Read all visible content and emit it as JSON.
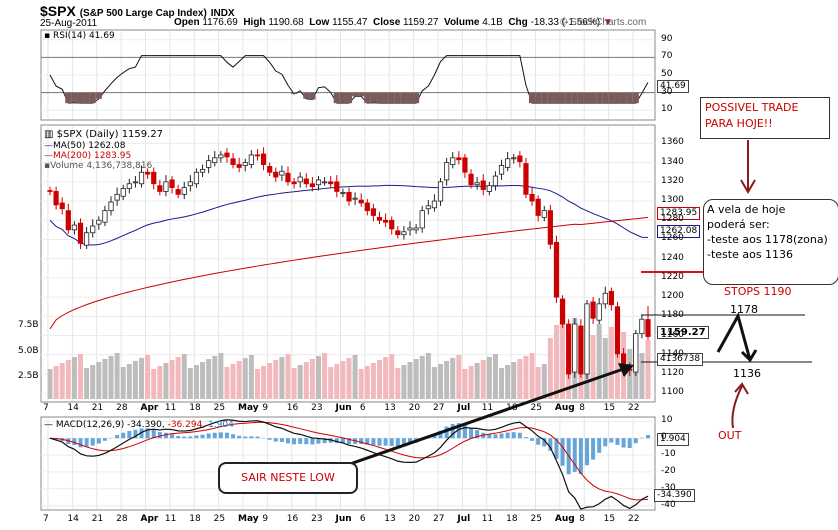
{
  "header": {
    "symbol": "$SPX",
    "name": "(S&P 500 Large Cap Index)",
    "exchange": "INDX",
    "date": "25-Aug-2011",
    "open_label": "Open",
    "open": "1176.69",
    "high_label": "High",
    "high": "1190.68",
    "low_label": "Low",
    "low": "1155.47",
    "close_label": "Close",
    "close": "1159.27",
    "volume_label": "Volume",
    "volume": "4.1B",
    "chg_label": "Chg",
    "chg": "-18.33 (-1.56%)",
    "watermark": "© StockCharts.com"
  },
  "rsi": {
    "label": "RSI(14) 41.69",
    "value_tag": "41.69",
    "ticks": [
      "90",
      "70",
      "50",
      "30",
      "10"
    ]
  },
  "price_panel": {
    "label": "$SPX (Daily) 1159.27",
    "legend": [
      {
        "text": "MA(50) 1262.08",
        "color": "#1a1a8c"
      },
      {
        "text": "MA(200) 1283.95",
        "color": "#cc0000"
      },
      {
        "text": "Volume 4,136,738,816",
        "color": "#555555"
      }
    ],
    "ticks": [
      "1360",
      "1340",
      "1320",
      "1300",
      "1280",
      "1260",
      "1240",
      "1220",
      "1200",
      "1180",
      "1160",
      "1140",
      "1120",
      "1100"
    ],
    "vol_ticks": [
      "7.5B",
      "5.0B",
      "2.5B"
    ],
    "tags": {
      "ma200": "1283.95",
      "ma50": "1262.08",
      "close": "1159.27",
      "volume": "4136738"
    }
  },
  "macd": {
    "label_black": "MACD(12,26,9) -34.390,",
    "label_red": "-36.294,",
    "label_blue": "1.904",
    "ticks": [
      "10",
      "0",
      "-10",
      "-20",
      "-30",
      "-40"
    ],
    "tags": {
      "hist": "1.904",
      "macd": "-34.390"
    }
  },
  "x_axis": {
    "labels": [
      {
        "t": "7",
        "b": false
      },
      {
        "t": "14",
        "b": false
      },
      {
        "t": "21",
        "b": false
      },
      {
        "t": "28",
        "b": false
      },
      {
        "t": "Apr",
        "b": true
      },
      {
        "t": "11",
        "b": false
      },
      {
        "t": "18",
        "b": false
      },
      {
        "t": "25",
        "b": false
      },
      {
        "t": "May",
        "b": true
      },
      {
        "t": "9",
        "b": false
      },
      {
        "t": "16",
        "b": false
      },
      {
        "t": "23",
        "b": false
      },
      {
        "t": "Jun",
        "b": true
      },
      {
        "t": "6",
        "b": false
      },
      {
        "t": "13",
        "b": false
      },
      {
        "t": "20",
        "b": false
      },
      {
        "t": "27",
        "b": false
      },
      {
        "t": "Jul",
        "b": true
      },
      {
        "t": "11",
        "b": false
      },
      {
        "t": "18",
        "b": false
      },
      {
        "t": "25",
        "b": false
      },
      {
        "t": "Aug",
        "b": true
      },
      {
        "t": "8",
        "b": false
      },
      {
        "t": "15",
        "b": false
      },
      {
        "t": "22",
        "b": false
      }
    ]
  },
  "annotations": {
    "trade_box": "POSSIVEL TRADE PARA HOJE!!",
    "candle_note_1": "A vela de hoje",
    "candle_note_2": "poderá ser:",
    "candle_note_3": "-teste aos 1178(zona)",
    "candle_note_4": "-teste aos 1136",
    "stops": "STOPS 1190",
    "level_1178": "1178",
    "level_1136": "1136",
    "out": "OUT",
    "exit_box": "SAIR NESTE LOW"
  },
  "chart_data": {
    "type": "candlestick",
    "title": "$SPX (S&P 500 Large Cap Index) Daily",
    "ylim": [
      1095,
      1375
    ],
    "close_series": [
      1310,
      1296,
      1292,
      1270,
      1275,
      1256,
      1267,
      1274,
      1280,
      1290,
      1299,
      1307,
      1313,
      1318,
      1320,
      1330,
      1328,
      1318,
      1310,
      1320,
      1314,
      1307,
      1314,
      1320,
      1330,
      1333,
      1342,
      1345,
      1348,
      1346,
      1338,
      1335,
      1340,
      1348,
      1347,
      1338,
      1330,
      1325,
      1331,
      1320,
      1318,
      1325,
      1318,
      1315,
      1322,
      1320,
      1318,
      1310,
      1309,
      1300,
      1303,
      1298,
      1290,
      1285,
      1280,
      1278,
      1271,
      1265,
      1268,
      1272,
      1272,
      1290,
      1295,
      1300,
      1320,
      1340,
      1345,
      1343,
      1330,
      1317,
      1319,
      1312,
      1316,
      1326,
      1337,
      1344,
      1345,
      1341,
      1307,
      1300,
      1285,
      1290,
      1255,
      1200,
      1172,
      1120,
      1172,
      1120,
      1193,
      1178,
      1193,
      1204,
      1192,
      1141,
      1123,
      1124,
      1162,
      1177,
      1159
    ],
    "ma50_end": 1262.08,
    "ma200_end": 1283.95,
    "rsi_end": 41.69,
    "macd_end": -34.39,
    "signal_end": -36.294,
    "hist_end": 1.904
  }
}
